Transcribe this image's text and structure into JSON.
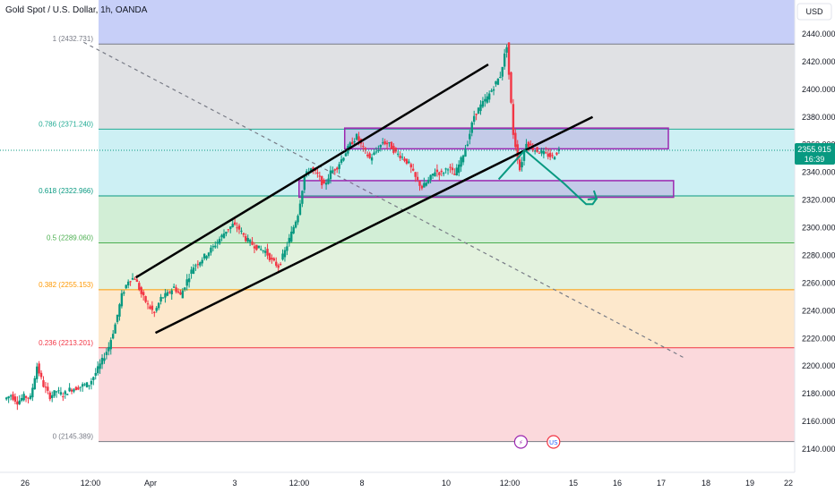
{
  "chart_data": {
    "type": "candlestick",
    "title": "Gold Spot / U.S. Dollar, 1h, OANDA",
    "currency": "USD",
    "ylim": [
      2136,
      2450
    ],
    "y_ticks": [
      "2440.000",
      "2420.000",
      "2400.000",
      "2380.000",
      "2360.000",
      "2340.000",
      "2320.000",
      "2300.000",
      "2280.000",
      "2260.000",
      "2240.000",
      "2220.000",
      "2200.000",
      "2180.000",
      "2160.000",
      "2140.000"
    ],
    "y_tick_values": [
      2440,
      2420,
      2400,
      2380,
      2360,
      2340,
      2320,
      2300,
      2280,
      2260,
      2240,
      2220,
      2200,
      2180,
      2160,
      2140
    ],
    "x_ticks": [
      "26",
      "12:00",
      "Apr",
      "3",
      "12:00",
      "8",
      "10",
      "12:00",
      "15",
      "16",
      "17",
      "18",
      "19",
      "22"
    ],
    "last_price": {
      "value": 2355.915,
      "label": "2355.915",
      "countdown": "16:39"
    },
    "fibonacci": [
      {
        "level": "1",
        "price": 2432.731,
        "label": "1 (2432.731)",
        "line_color": "#787b86",
        "fill": "#c7cff8"
      },
      {
        "level": "0.786",
        "price": 2371.24,
        "label": "0.786 (2371.240)",
        "line_color": "#22ab94",
        "fill": "#e0e1e4"
      },
      {
        "level": "0.618",
        "price": 2322.966,
        "label": "0.618 (2322.966)",
        "line_color": "#089981",
        "fill": "#cdf0f4"
      },
      {
        "level": "0.5",
        "price": 2289.06,
        "label": "0.5 (2289.060)",
        "line_color": "#4caf50",
        "fill": "#d2eed6"
      },
      {
        "level": "0.382",
        "price": 2255.153,
        "label": "0.382 (2255.153)",
        "line_color": "#ff9800",
        "fill": "#e3f2de"
      },
      {
        "level": "0.236",
        "price": 2213.201,
        "label": "0.236 (2213.201)",
        "line_color": "#f23645",
        "fill": "#fde8cc"
      },
      {
        "level": "0",
        "price": 2145.389,
        "label": "0 (2145.389)",
        "line_color": "#787b86",
        "fill": "#fbd9dc"
      }
    ],
    "price_path": [
      2176,
      2179,
      2174,
      2178,
      2177,
      2200,
      2186,
      2178,
      2182,
      2179,
      2183,
      2184,
      2186,
      2187,
      2195,
      2204,
      2214,
      2230,
      2251,
      2262,
      2264,
      2252,
      2244,
      2238,
      2249,
      2252,
      2257,
      2251,
      2262,
      2272,
      2276,
      2281,
      2286,
      2292,
      2298,
      2302,
      2299,
      2292,
      2288,
      2285,
      2283,
      2276,
      2272,
      2283,
      2296,
      2310,
      2337,
      2343,
      2338,
      2330,
      2340,
      2344,
      2352,
      2360,
      2366,
      2357,
      2350,
      2355,
      2362,
      2360,
      2354,
      2351,
      2346,
      2336,
      2329,
      2334,
      2341,
      2339,
      2344,
      2338,
      2349,
      2362,
      2381,
      2388,
      2394,
      2402,
      2410,
      2432,
      2368,
      2342,
      2362,
      2357,
      2355,
      2353,
      2351,
      2356
    ],
    "price_times": [
      0,
      5,
      10,
      15,
      20,
      25,
      30,
      35,
      40,
      45,
      50,
      55,
      60,
      65,
      70,
      75,
      80,
      85,
      90,
      95,
      100,
      105,
      110,
      115,
      120,
      125,
      130,
      135,
      140,
      145,
      150,
      155,
      160,
      165,
      170,
      175,
      180,
      185,
      190,
      195,
      200,
      205,
      210,
      215,
      220,
      225,
      230,
      235,
      240,
      245,
      250,
      255,
      260,
      265,
      270,
      275,
      280,
      285,
      290,
      295,
      300,
      305,
      310,
      315,
      320,
      325,
      330,
      335,
      340,
      345,
      350,
      355,
      360,
      365,
      370,
      375,
      380,
      385,
      390,
      395,
      400,
      405,
      410,
      415,
      420,
      425
    ],
    "channel": {
      "upper": [
        [
          100,
          2264
        ],
        [
          370,
          2418
        ]
      ],
      "lower": [
        [
          115,
          2224
        ],
        [
          450,
          2380
        ]
      ],
      "color": "#000000"
    },
    "trend_dashed": {
      "from": [
        60,
        2434
      ],
      "to": [
        520,
        2206
      ],
      "color": "#787b86"
    },
    "supply_zone": {
      "from_time": 260,
      "to_time": 508,
      "top": 2372,
      "bottom": 2357,
      "color": "#9c27b0"
    },
    "demand_zone": {
      "from_time": 225,
      "to_time": 512,
      "top": 2334,
      "bottom": 2322,
      "color": "#9c27b0"
    },
    "projection": {
      "points": [
        [
          378,
          2335
        ],
        [
          398,
          2356
        ],
        [
          428,
          2332
        ],
        [
          445,
          2317
        ],
        [
          450,
          2317
        ],
        [
          453,
          2321
        ]
      ],
      "color": "#089981"
    },
    "event_icons": [
      {
        "time": 395,
        "kind": "dividend",
        "symbol": "⚡"
      },
      {
        "time": 420,
        "kind": "economic-event",
        "symbol": "US"
      }
    ]
  }
}
